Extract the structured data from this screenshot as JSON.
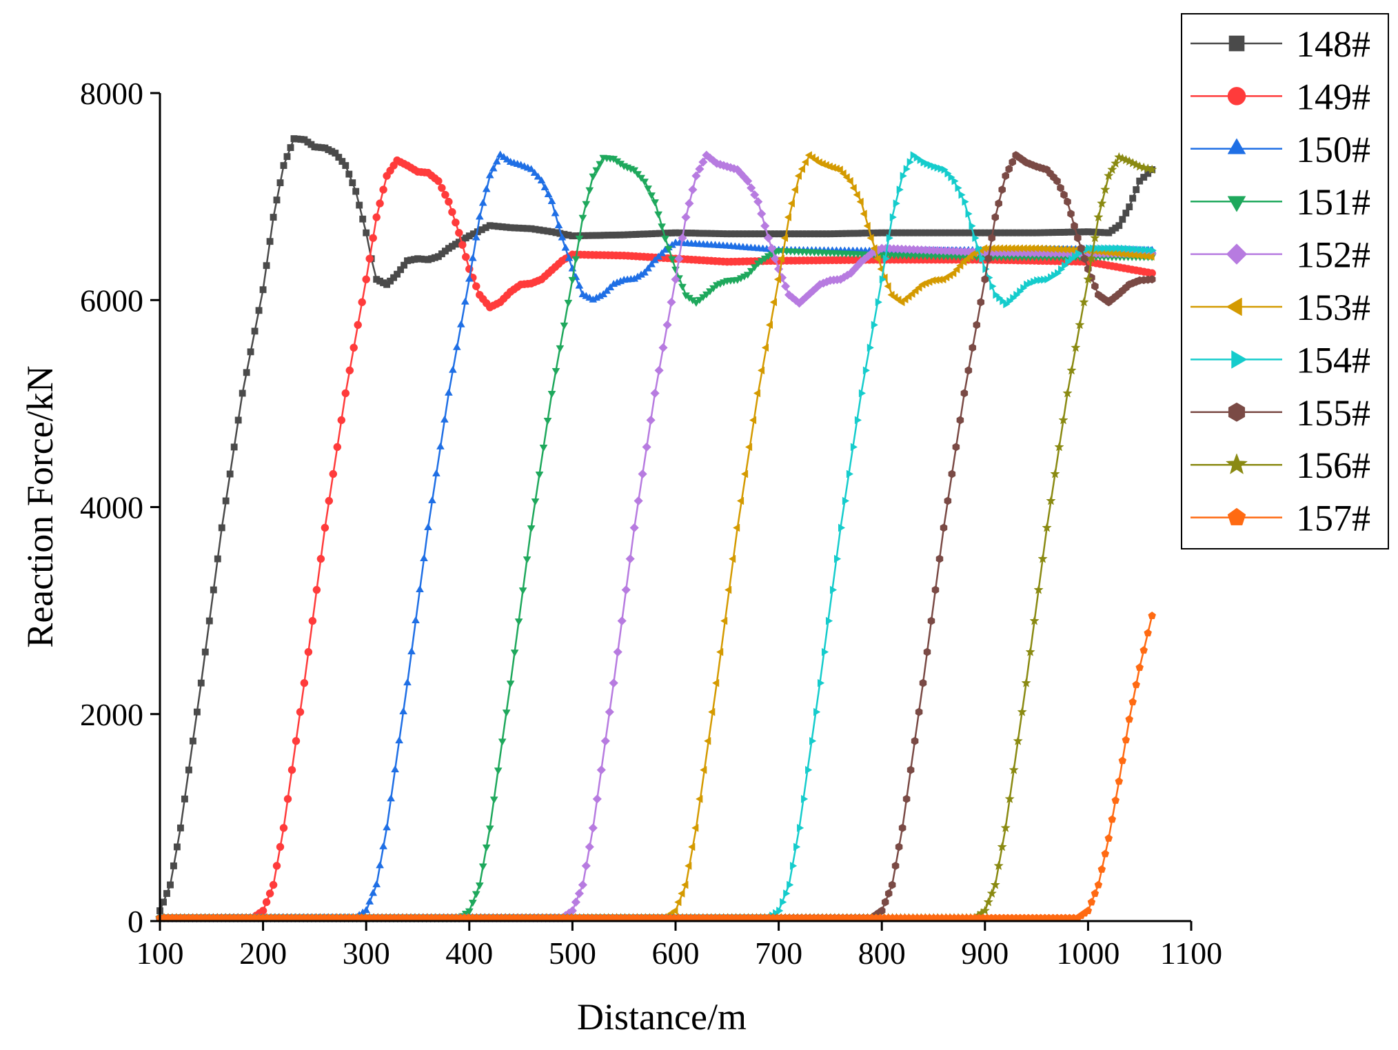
{
  "chart_data": {
    "type": "line",
    "title": "",
    "xlabel": "Distance/m",
    "ylabel": "Reaction Force/kN",
    "xlim": [
      100,
      1100
    ],
    "ylim": [
      0,
      8000
    ],
    "xticks": [
      "100",
      "200",
      "300",
      "400",
      "500",
      "600",
      "700",
      "800",
      "900",
      "1000",
      "1100"
    ],
    "yticks": [
      "0",
      "2000",
      "4000",
      "6000",
      "8000"
    ],
    "grid": false,
    "legend_position": "top-right (outside plot)",
    "series": [
      {
        "name": "148#",
        "color": "#4a4a4a",
        "marker": "square",
        "x": [
          100,
          110,
          120,
          140,
          160,
          180,
          200,
          210,
          220,
          230,
          240,
          250,
          260,
          270,
          280,
          290,
          300,
          305,
          310,
          320,
          330,
          340,
          350,
          360,
          370,
          380,
          390,
          400,
          420,
          440,
          460,
          480,
          500,
          550,
          600,
          650,
          700,
          750,
          800,
          850,
          900,
          950,
          1000,
          1020,
          1030,
          1040,
          1050,
          1062
        ],
        "y": [
          100,
          350,
          900,
          2300,
          3800,
          5100,
          6100,
          6800,
          7300,
          7560,
          7550,
          7480,
          7470,
          7420,
          7300,
          7050,
          6650,
          6400,
          6200,
          6150,
          6250,
          6380,
          6400,
          6390,
          6420,
          6500,
          6560,
          6620,
          6720,
          6700,
          6690,
          6660,
          6620,
          6630,
          6650,
          6640,
          6640,
          6640,
          6650,
          6650,
          6650,
          6650,
          6660,
          6650,
          6720,
          6900,
          7150,
          7260
        ]
      },
      {
        "name": "149#",
        "color": "#ff3b3b",
        "marker": "circle",
        "x": [
          100,
          190,
          200,
          210,
          220,
          240,
          260,
          280,
          300,
          310,
          320,
          330,
          340,
          350,
          360,
          370,
          380,
          390,
          400,
          410,
          420,
          430,
          440,
          450,
          460,
          470,
          480,
          490,
          500,
          550,
          600,
          650,
          700,
          800,
          900,
          1000,
          1062
        ],
        "y": [
          30,
          30,
          100,
          350,
          900,
          2300,
          3800,
          5100,
          6200,
          6800,
          7200,
          7350,
          7300,
          7240,
          7230,
          7150,
          6950,
          6650,
          6300,
          6050,
          5930,
          5980,
          6080,
          6150,
          6160,
          6200,
          6290,
          6380,
          6440,
          6430,
          6400,
          6370,
          6380,
          6390,
          6390,
          6370,
          6260
        ]
      },
      {
        "name": "150#",
        "color": "#1f6fe5",
        "marker": "triangle-up",
        "x": [
          100,
          290,
          300,
          310,
          320,
          340,
          360,
          380,
          400,
          410,
          420,
          430,
          440,
          450,
          460,
          470,
          480,
          490,
          500,
          510,
          520,
          530,
          540,
          550,
          560,
          570,
          580,
          590,
          600,
          650,
          700,
          800,
          900,
          1000,
          1062
        ],
        "y": [
          30,
          30,
          100,
          350,
          900,
          2300,
          3800,
          5100,
          6200,
          6800,
          7200,
          7400,
          7330,
          7300,
          7260,
          7150,
          6950,
          6600,
          6300,
          6050,
          6000,
          6050,
          6150,
          6190,
          6200,
          6260,
          6380,
          6480,
          6550,
          6520,
          6480,
          6470,
          6480,
          6490,
          6480
        ]
      },
      {
        "name": "151#",
        "color": "#1ea85c",
        "marker": "triangle-down",
        "x": [
          100,
          390,
          400,
          410,
          420,
          440,
          460,
          480,
          500,
          510,
          520,
          530,
          540,
          550,
          560,
          570,
          580,
          590,
          600,
          610,
          620,
          630,
          640,
          650,
          660,
          670,
          680,
          690,
          700,
          750,
          800,
          900,
          1000,
          1062
        ],
        "y": [
          30,
          30,
          100,
          350,
          900,
          2300,
          3800,
          5100,
          6200,
          6800,
          7200,
          7380,
          7370,
          7300,
          7260,
          7150,
          6950,
          6600,
          6300,
          6050,
          5980,
          6060,
          6150,
          6190,
          6200,
          6250,
          6360,
          6430,
          6480,
          6460,
          6440,
          6420,
          6420,
          6420
        ]
      },
      {
        "name": "152#",
        "color": "#b77be0",
        "marker": "diamond",
        "x": [
          100,
          490,
          500,
          510,
          520,
          540,
          560,
          580,
          600,
          610,
          620,
          630,
          640,
          650,
          660,
          670,
          680,
          690,
          700,
          710,
          720,
          730,
          740,
          750,
          760,
          770,
          780,
          790,
          800,
          850,
          900,
          1000,
          1062
        ],
        "y": [
          30,
          30,
          100,
          350,
          900,
          2300,
          3800,
          5100,
          6200,
          6800,
          7200,
          7400,
          7320,
          7290,
          7260,
          7150,
          6950,
          6600,
          6300,
          6050,
          5970,
          6060,
          6150,
          6190,
          6200,
          6260,
          6370,
          6450,
          6500,
          6480,
          6460,
          6450,
          6450
        ]
      },
      {
        "name": "153#",
        "color": "#d49a00",
        "marker": "triangle-left",
        "x": [
          100,
          590,
          600,
          610,
          620,
          640,
          660,
          680,
          700,
          710,
          720,
          730,
          740,
          750,
          760,
          770,
          780,
          790,
          800,
          810,
          820,
          830,
          840,
          850,
          860,
          870,
          880,
          890,
          900,
          950,
          1000,
          1062
        ],
        "y": [
          30,
          30,
          100,
          350,
          900,
          2300,
          3800,
          5100,
          6200,
          6800,
          7200,
          7400,
          7330,
          7290,
          7260,
          7150,
          6950,
          6600,
          6300,
          6050,
          5980,
          6060,
          6150,
          6190,
          6200,
          6260,
          6370,
          6450,
          6500,
          6500,
          6480,
          6420
        ]
      },
      {
        "name": "154#",
        "color": "#15cccc",
        "marker": "triangle-right",
        "x": [
          100,
          690,
          700,
          710,
          720,
          740,
          760,
          780,
          800,
          810,
          820,
          830,
          840,
          850,
          860,
          870,
          880,
          890,
          900,
          910,
          920,
          930,
          940,
          950,
          960,
          970,
          980,
          990,
          1000,
          1030,
          1062
        ],
        "y": [
          30,
          30,
          100,
          350,
          900,
          2300,
          3800,
          5100,
          6200,
          6800,
          7200,
          7400,
          7330,
          7290,
          7260,
          7150,
          6950,
          6600,
          6300,
          6050,
          5960,
          6050,
          6150,
          6190,
          6200,
          6260,
          6370,
          6450,
          6500,
          6500,
          6480
        ]
      },
      {
        "name": "155#",
        "color": "#7a4a45",
        "marker": "hexagon",
        "x": [
          100,
          790,
          800,
          810,
          820,
          840,
          860,
          880,
          900,
          910,
          920,
          930,
          940,
          950,
          960,
          970,
          980,
          990,
          1000,
          1010,
          1020,
          1030,
          1040,
          1050,
          1062
        ],
        "y": [
          30,
          30,
          100,
          350,
          900,
          2300,
          3800,
          5100,
          6200,
          6800,
          7200,
          7400,
          7330,
          7290,
          7260,
          7150,
          6950,
          6600,
          6300,
          6050,
          5980,
          6060,
          6150,
          6190,
          6200
        ]
      },
      {
        "name": "156#",
        "color": "#8a8a12",
        "marker": "star",
        "x": [
          100,
          890,
          900,
          910,
          920,
          940,
          960,
          980,
          1000,
          1010,
          1020,
          1030,
          1040,
          1050,
          1062
        ],
        "y": [
          30,
          30,
          100,
          350,
          900,
          2300,
          3800,
          5100,
          6200,
          6800,
          7200,
          7380,
          7340,
          7290,
          7260
        ]
      },
      {
        "name": "157#",
        "color": "#ff6a12",
        "marker": "pentagon",
        "x": [
          100,
          990,
          1000,
          1010,
          1020,
          1030,
          1040,
          1050,
          1062
        ],
        "y": [
          30,
          30,
          100,
          350,
          800,
          1350,
          1950,
          2450,
          2950
        ]
      }
    ]
  }
}
